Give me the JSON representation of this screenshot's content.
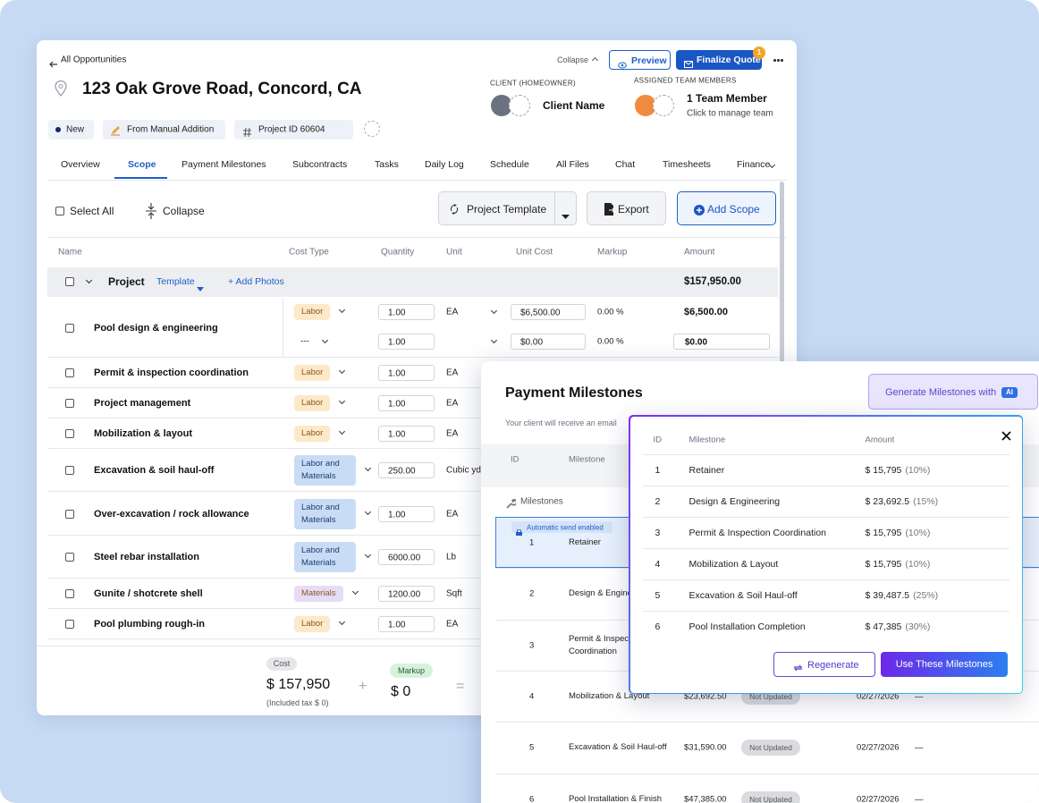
{
  "header": {
    "back": "All Opportunities",
    "collapse": "Collapse",
    "preview": "Preview",
    "finalize": "Finalize Quote",
    "badge": "1",
    "title": "123 Oak Grove Road, Concord, CA",
    "client_label": "CLIENT (HOMEOWNER)",
    "client_name": "Client Name",
    "team_label": "ASSIGNED TEAM MEMBERS",
    "team_count": "1 Team Member",
    "team_hint": "Click to manage team",
    "tags": [
      "New",
      "From Manual Addition",
      "Project ID 60604"
    ]
  },
  "tabs": [
    "Overview",
    "Scope",
    "Payment Milestones",
    "Subcontracts",
    "Tasks",
    "Daily Log",
    "Schedule",
    "All Files",
    "Chat",
    "Timesheets",
    "Finance"
  ],
  "toolbar": {
    "select_all": "Select All",
    "collapse": "Collapse",
    "template": "Project Template",
    "export": "Export",
    "add_scope": "Add Scope"
  },
  "scope": {
    "columns": [
      "Name",
      "Cost Type",
      "Quantity",
      "Unit",
      "Unit Cost",
      "Markup",
      "Amount"
    ],
    "group": {
      "name": "Project",
      "template": "Template",
      "add_photos": "+ Add Photos",
      "amount": "$157,950.00"
    },
    "rows": [
      {
        "name": "Pool design & engineering",
        "lines": [
          {
            "cost_type": "Labor",
            "color": "#fde8c8",
            "quantity": "1.00",
            "unit": "EA",
            "unit_cost": "$6,500.00",
            "markup": "0.00 %",
            "amount": "$6,500.00"
          },
          {
            "cost_type": "---",
            "quantity": "1.00",
            "unit_cost": "$0.00",
            "markup": "0.00 %",
            "amount": "$0.00"
          }
        ]
      },
      {
        "name": "Permit & inspection coordination",
        "lines": [
          {
            "cost_type": "Labor",
            "color": "#fde8c8",
            "quantity": "1.00",
            "unit": "EA"
          }
        ]
      },
      {
        "name": "Project management",
        "lines": [
          {
            "cost_type": "Labor",
            "color": "#fde8c8",
            "quantity": "1.00",
            "unit": "EA"
          }
        ]
      },
      {
        "name": "Mobilization & layout",
        "lines": [
          {
            "cost_type": "Labor",
            "color": "#fde8c8",
            "quantity": "1.00",
            "unit": "EA"
          }
        ]
      },
      {
        "name": "Excavation & soil haul-off",
        "lines": [
          {
            "cost_type": "Labor and Materials",
            "color": "#c9dcf5",
            "quantity": "250.00",
            "unit": "Cubic yd"
          }
        ]
      },
      {
        "name": "Over-excavation / rock allowance",
        "lines": [
          {
            "cost_type": "Labor and Materials",
            "color": "#c9dcf5",
            "quantity": "1.00",
            "unit": "EA"
          }
        ]
      },
      {
        "name": "Steel rebar installation",
        "lines": [
          {
            "cost_type": "Labor and Materials",
            "color": "#c9dcf5",
            "quantity": "6000.00",
            "unit": "Lb"
          }
        ]
      },
      {
        "name": "Gunite / shotcrete shell",
        "lines": [
          {
            "cost_type": "Materials",
            "color": "#e7dcf6",
            "quantity": "1200.00",
            "unit": "Sqft"
          }
        ]
      },
      {
        "name": "Pool plumbing rough-in",
        "lines": [
          {
            "cost_type": "Labor",
            "color": "#fde8c8",
            "quantity": "1.00",
            "unit": "EA"
          }
        ]
      }
    ]
  },
  "footer": {
    "cost_label": "Cost",
    "cost": "$ 157,950",
    "tax": "(Included tax $ 0)",
    "plus": "+",
    "markup_label": "Markup",
    "markup": "$ 0",
    "equals": "="
  },
  "milestones_panel": {
    "title": "Payment Milestones",
    "ai_button": "Generate Milestones with",
    "ai_badge": "AI",
    "note": "Your client will receive an email",
    "columns": [
      "ID",
      "Milestone"
    ],
    "section": "Milestones",
    "auto_send": "Automatic send enabled",
    "rows": [
      {
        "id": "1",
        "name": "Retainer"
      },
      {
        "id": "2",
        "name": "Design & Engineering"
      },
      {
        "id": "3",
        "name": "Permit & Inspection Coordination"
      },
      {
        "id": "4",
        "name": "Mobilization & Layout",
        "amount": "$23,692.50",
        "status": "Not Updated",
        "date": "02/27/2026",
        "dash": "—"
      },
      {
        "id": "5",
        "name": "Excavation & Soil Haul-off",
        "amount": "$31,590.00",
        "status": "Not Updated",
        "date": "02/27/2026",
        "dash": "—"
      },
      {
        "id": "6",
        "name": "Pool Installation & Finish",
        "amount": "$47,385.00",
        "status": "Not Updated",
        "date": "02/27/2026",
        "dash": "—"
      }
    ]
  },
  "modal": {
    "columns": [
      "ID",
      "Milestone",
      "Amount"
    ],
    "rows": [
      {
        "id": "1",
        "name": "Retainer",
        "amount": "$ 15,795",
        "percent": "(10%)"
      },
      {
        "id": "2",
        "name": "Design & Engineering",
        "amount": "$ 23,692.5",
        "percent": "(15%)"
      },
      {
        "id": "3",
        "name": "Permit & Inspection Coordination",
        "amount": "$ 15,795",
        "percent": "(10%)"
      },
      {
        "id": "4",
        "name": "Mobilization & Layout",
        "amount": "$ 15,795",
        "percent": "(10%)"
      },
      {
        "id": "5",
        "name": "Excavation & Soil Haul-off",
        "amount": "$ 39,487.5",
        "percent": "(25%)"
      },
      {
        "id": "6",
        "name": "Pool Installation Completion",
        "amount": "$ 47,385",
        "percent": "(30%)"
      }
    ],
    "regenerate": "Regenerate",
    "use": "Use These Milestones"
  }
}
